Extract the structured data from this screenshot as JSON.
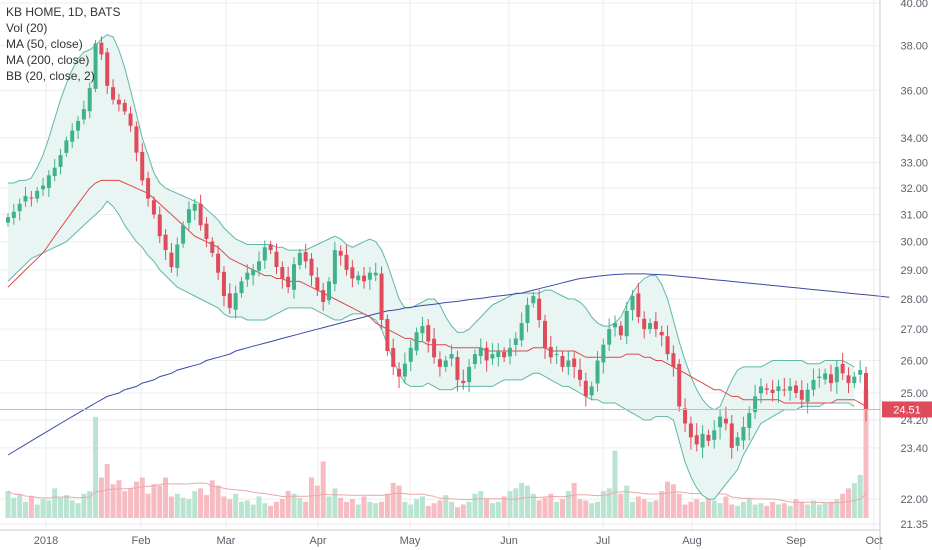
{
  "legend": {
    "title": "KB HOME, 1D, BATS",
    "vol": "Vol (20)",
    "ma50": "MA (50, close)",
    "ma200": "MA (200, close)",
    "bb": "BB (20, close, 2)"
  },
  "colors": {
    "up": "#3fb28a",
    "down": "#e04b5b",
    "ma50": "#e0474c",
    "ma200": "#3a4aa6",
    "bb": "#5fb7a8",
    "bb_fill": "#e8f5f3",
    "grid": "#eeeeee",
    "vol_up": "#b9e4d2",
    "vol_down": "#f6bcc2"
  },
  "chart_data": {
    "type": "candlestick",
    "title": "KB HOME, 1D, BATS",
    "scale": "log",
    "y_ticks": [
      "40.00",
      "38.00",
      "36.00",
      "34.00",
      "33.00",
      "32.00",
      "31.00",
      "30.00",
      "29.00",
      "28.00",
      "27.00",
      "26.00",
      "25.00",
      "24.20",
      "23.40",
      "22.00",
      "21.35"
    ],
    "y_tick_values": [
      40,
      38,
      36,
      34,
      33,
      32,
      31,
      30,
      29,
      28,
      27,
      26,
      25,
      24.2,
      23.4,
      22,
      21.35
    ],
    "x_ticks": [
      "2018",
      "Feb",
      "Mar",
      "Apr",
      "May",
      "Jun",
      "Jul",
      "Aug",
      "Sep",
      "Oct"
    ],
    "x_tick_dates": [
      "2018-01-02",
      "2018-02-01",
      "2018-03-01",
      "2018-04-02",
      "2018-05-01",
      "2018-06-01",
      "2018-07-02",
      "2018-08-01",
      "2018-09-04",
      "2018-10-01"
    ],
    "last_price": "24.51",
    "last_price_value": 24.51,
    "close_series": [
      30.9,
      31.1,
      31.4,
      31.7,
      31.6,
      31.9,
      32.1,
      32.5,
      32.8,
      33.3,
      33.9,
      34.3,
      34.7,
      35.2,
      36.1,
      38.1,
      37.6,
      36.2,
      35.6,
      35.4,
      35.1,
      34.5,
      33.4,
      32.3,
      31.6,
      31.0,
      30.2,
      29.7,
      29.1,
      29.9,
      30.6,
      31.2,
      31.4,
      30.6,
      30.1,
      29.6,
      28.9,
      28.1,
      27.7,
      28.2,
      28.6,
      28.9,
      29.0,
      29.3,
      29.8,
      29.7,
      29.1,
      28.7,
      28.4,
      29.2,
      29.6,
      29.3,
      28.8,
      28.3,
      27.9,
      28.6,
      29.7,
      29.5,
      29.0,
      28.7,
      28.8,
      28.6,
      28.9,
      28.9,
      27.3,
      26.3,
      25.8,
      25.5,
      25.9,
      26.4,
      26.9,
      27.1,
      26.6,
      26.1,
      25.8,
      26.0,
      26.2,
      25.4,
      25.3,
      25.8,
      26.2,
      26.4,
      26.0,
      26.2,
      26.3,
      26.1,
      26.4,
      26.7,
      27.2,
      27.8,
      28.1,
      27.3,
      26.4,
      26.1,
      26.2,
      25.8,
      26.0,
      25.8,
      25.4,
      24.9,
      25.2,
      26.0,
      26.5,
      27.0,
      27.2,
      26.8,
      27.6,
      28.1,
      27.4,
      27.0,
      27.2,
      27.0,
      26.8,
      26.2,
      25.8,
      24.6,
      24.1,
      23.7,
      23.5,
      23.8,
      23.6,
      23.9,
      24.3,
      24.1,
      23.4,
      23.7,
      24.0,
      24.4,
      24.9,
      25.2,
      25.1,
      25.0,
      25.2,
      25.1,
      25.2,
      25.0,
      24.8,
      25.1,
      25.4,
      25.5,
      25.6,
      25.3,
      25.8,
      25.6,
      25.3,
      25.5,
      25.7,
      24.51
    ],
    "ma50_series": [
      28.4,
      28.6,
      28.8,
      29.0,
      29.2,
      29.4,
      29.6,
      29.9,
      30.2,
      30.5,
      30.8,
      31.1,
      31.4,
      31.7,
      32.0,
      32.2,
      32.3,
      32.3,
      32.3,
      32.3,
      32.2,
      32.1,
      32.0,
      31.9,
      31.8,
      31.6,
      31.4,
      31.2,
      31.0,
      30.8,
      30.6,
      30.4,
      30.2,
      30.1,
      30.0,
      29.9,
      29.8,
      29.6,
      29.4,
      29.3,
      29.2,
      29.1,
      29.0,
      28.9,
      28.8,
      28.8,
      28.7,
      28.7,
      28.6,
      28.6,
      28.6,
      28.5,
      28.4,
      28.3,
      28.2,
      28.1,
      28.0,
      27.9,
      27.8,
      27.7,
      27.6,
      27.5,
      27.4,
      27.2,
      27.1,
      27.0,
      26.9,
      26.8,
      26.7,
      26.7,
      26.6,
      26.6,
      26.5,
      26.5,
      26.5,
      26.5,
      26.4,
      26.4,
      26.4,
      26.4,
      26.4,
      26.4,
      26.3,
      26.3,
      26.3,
      26.3,
      26.3,
      26.3,
      26.3,
      26.3,
      26.4,
      26.4,
      26.4,
      26.3,
      26.3,
      26.3,
      26.3,
      26.3,
      26.2,
      26.1,
      26.1,
      26.1,
      26.1,
      26.1,
      26.1,
      26.1,
      26.2,
      26.2,
      26.2,
      26.1,
      26.1,
      26.0,
      26.0,
      25.9,
      25.8,
      25.7,
      25.6,
      25.5,
      25.4,
      25.3,
      25.2,
      25.1,
      25.1,
      25.0,
      24.9,
      24.9,
      24.8,
      24.8,
      24.8,
      24.8,
      24.8,
      24.8,
      24.8,
      24.7,
      24.7,
      24.7,
      24.7,
      24.7,
      24.7,
      24.7,
      24.7,
      24.7,
      24.8,
      24.8,
      24.8,
      24.8,
      24.7,
      24.6
    ],
    "ma200_series": [
      23.2,
      23.3,
      23.4,
      23.5,
      23.6,
      23.7,
      23.8,
      23.9,
      24.0,
      24.1,
      24.2,
      24.3,
      24.4,
      24.5,
      24.6,
      24.7,
      24.8,
      24.9,
      24.95,
      25.0,
      25.1,
      25.15,
      25.2,
      25.3,
      25.35,
      25.4,
      25.5,
      25.55,
      25.6,
      25.7,
      25.75,
      25.8,
      25.85,
      25.9,
      26.0,
      26.05,
      26.1,
      26.15,
      26.2,
      26.3,
      26.35,
      26.4,
      26.45,
      26.5,
      26.55,
      26.6,
      26.65,
      26.7,
      26.75,
      26.8,
      26.85,
      26.9,
      26.95,
      27.0,
      27.05,
      27.1,
      27.15,
      27.2,
      27.25,
      27.3,
      27.35,
      27.4,
      27.45,
      27.5,
      27.55,
      27.6,
      27.62,
      27.65,
      27.7,
      27.72,
      27.75,
      27.78,
      27.8,
      27.82,
      27.85,
      27.88,
      27.9,
      27.92,
      27.95,
      27.98,
      28.0,
      28.02,
      28.05,
      28.08,
      28.1,
      28.12,
      28.15,
      28.18,
      28.2,
      28.25,
      28.3,
      28.35,
      28.4,
      28.45,
      28.5,
      28.55,
      28.6,
      28.65,
      28.7,
      28.72,
      28.75,
      28.78,
      28.8,
      28.82,
      28.84,
      28.85,
      28.86,
      28.86,
      28.86,
      28.86,
      28.85,
      28.84,
      28.83,
      28.82,
      28.8,
      28.78,
      28.76,
      28.74,
      28.72,
      28.7,
      28.68,
      28.66,
      28.64,
      28.62,
      28.6,
      28.58,
      28.56,
      28.54,
      28.52,
      28.5,
      28.48,
      28.46,
      28.44,
      28.42,
      28.4,
      28.38,
      28.36,
      28.34,
      28.32,
      28.3,
      28.28,
      28.26,
      28.24,
      28.22,
      28.2,
      28.18,
      28.16,
      28.14,
      28.12,
      28.1,
      28.08,
      28.06
    ],
    "bb_upper_series": [
      32.2,
      32.2,
      32.3,
      32.3,
      32.4,
      32.8,
      33.3,
      34.0,
      34.8,
      35.6,
      36.3,
      36.9,
      37.4,
      37.7,
      37.8,
      38.0,
      38.3,
      38.5,
      38.4,
      37.8,
      37.0,
      36.0,
      35.0,
      34.0,
      33.3,
      32.6,
      32.2,
      32.0,
      31.9,
      31.8,
      31.7,
      31.6,
      31.5,
      31.4,
      31.2,
      31.0,
      30.8,
      30.5,
      30.3,
      30.1,
      30.0,
      29.9,
      29.9,
      29.9,
      29.9,
      29.9,
      29.8,
      29.8,
      29.7,
      29.7,
      29.7,
      29.7,
      29.8,
      29.9,
      30.0,
      30.1,
      30.2,
      30.1,
      29.9,
      29.8,
      29.9,
      30.0,
      30.1,
      30.0,
      29.7,
      29.2,
      28.6,
      28.0,
      27.7,
      27.7,
      27.8,
      27.9,
      28.0,
      28.0,
      27.8,
      27.4,
      27.1,
      26.9,
      26.9,
      27.0,
      27.2,
      27.4,
      27.6,
      27.8,
      27.9,
      28.0,
      28.1,
      28.2,
      28.2,
      28.2,
      28.2,
      28.2,
      28.3,
      28.3,
      28.2,
      28.1,
      28.0,
      28.0,
      27.9,
      27.7,
      27.4,
      27.2,
      27.1,
      27.1,
      27.2,
      27.4,
      27.8,
      28.2,
      28.5,
      28.7,
      28.8,
      28.8,
      28.5,
      28.0,
      27.3,
      26.6,
      26.0,
      25.5,
      25.1,
      24.8,
      24.6,
      24.5,
      24.6,
      25.0,
      25.4,
      25.7,
      25.8,
      25.8,
      25.8,
      25.8,
      25.9,
      26.0,
      26.0,
      26.0,
      26.0,
      26.0,
      26.0,
      25.9,
      25.9,
      25.9,
      26.0,
      26.0,
      26.0,
      26.0,
      25.9,
      25.8
    ],
    "bb_lower_series": [
      28.6,
      28.8,
      29.0,
      29.2,
      29.4,
      29.5,
      29.6,
      29.7,
      29.8,
      29.9,
      30.0,
      30.2,
      30.4,
      30.6,
      30.8,
      31.0,
      31.2,
      31.5,
      31.3,
      31.0,
      30.6,
      30.3,
      30.0,
      29.8,
      29.5,
      29.3,
      29.0,
      28.8,
      28.6,
      28.4,
      28.3,
      28.2,
      28.1,
      28.0,
      27.9,
      27.8,
      27.7,
      27.5,
      27.4,
      27.4,
      27.4,
      27.3,
      27.3,
      27.3,
      27.3,
      27.4,
      27.5,
      27.6,
      27.7,
      27.7,
      27.7,
      27.7,
      27.7,
      27.6,
      27.5,
      27.4,
      27.3,
      27.3,
      27.4,
      27.5,
      27.5,
      27.5,
      27.4,
      27.3,
      27.0,
      26.5,
      26.0,
      25.6,
      25.3,
      25.2,
      25.2,
      25.2,
      25.3,
      25.2,
      25.1,
      25.1,
      25.1,
      25.2,
      25.2,
      25.2,
      25.2,
      25.2,
      25.2,
      25.2,
      25.3,
      25.4,
      25.4,
      25.4,
      25.4,
      25.5,
      25.6,
      25.6,
      25.5,
      25.4,
      25.3,
      25.2,
      25.2,
      25.1,
      25.0,
      24.9,
      24.8,
      24.8,
      24.7,
      24.7,
      24.7,
      24.6,
      24.5,
      24.4,
      24.3,
      24.2,
      24.2,
      24.3,
      24.3,
      24.3,
      24.2,
      23.6,
      23.0,
      22.6,
      22.3,
      22.1,
      22.0,
      22.0,
      22.2,
      22.4,
      22.6,
      22.8,
      23.2,
      23.5,
      23.8,
      24.1,
      24.2,
      24.3,
      24.4,
      24.5,
      24.5,
      24.5,
      24.6,
      24.6,
      24.6,
      24.6,
      24.7,
      24.7,
      24.7,
      24.7,
      24.7,
      24.6
    ],
    "volume_series": [
      0.2,
      0.15,
      0.18,
      0.12,
      0.16,
      0.1,
      0.14,
      0.13,
      0.22,
      0.15,
      0.17,
      0.13,
      0.11,
      0.18,
      0.2,
      0.75,
      0.3,
      0.4,
      0.25,
      0.28,
      0.2,
      0.22,
      0.27,
      0.3,
      0.18,
      0.25,
      0.24,
      0.3,
      0.16,
      0.18,
      0.15,
      0.14,
      0.2,
      0.22,
      0.17,
      0.28,
      0.24,
      0.16,
      0.14,
      0.18,
      0.12,
      0.13,
      0.1,
      0.16,
      0.11,
      0.09,
      0.12,
      0.14,
      0.2,
      0.18,
      0.15,
      0.12,
      0.3,
      0.24,
      0.42,
      0.16,
      0.22,
      0.15,
      0.12,
      0.14,
      0.1,
      0.16,
      0.12,
      0.11,
      0.12,
      0.18,
      0.26,
      0.24,
      0.12,
      0.1,
      0.14,
      0.16,
      0.09,
      0.11,
      0.13,
      0.17,
      0.12,
      0.08,
      0.1,
      0.12,
      0.18,
      0.2,
      0.14,
      0.11,
      0.12,
      0.16,
      0.2,
      0.22,
      0.26,
      0.24,
      0.18,
      0.13,
      0.15,
      0.18,
      0.12,
      0.14,
      0.2,
      0.26,
      0.14,
      0.13,
      0.11,
      0.12,
      0.2,
      0.22,
      0.5,
      0.18,
      0.24,
      0.12,
      0.16,
      0.14,
      0.12,
      0.13,
      0.2,
      0.27,
      0.25,
      0.18,
      0.1,
      0.12,
      0.14,
      0.12,
      0.15,
      0.13,
      0.11,
      0.16,
      0.1,
      0.09,
      0.12,
      0.14,
      0.1,
      0.11,
      0.09,
      0.12,
      0.1,
      0.11,
      0.09,
      0.14,
      0.12,
      0.1,
      0.13,
      0.1,
      0.11,
      0.12,
      0.14,
      0.18,
      0.22,
      0.26,
      0.32,
      0.95
    ]
  }
}
